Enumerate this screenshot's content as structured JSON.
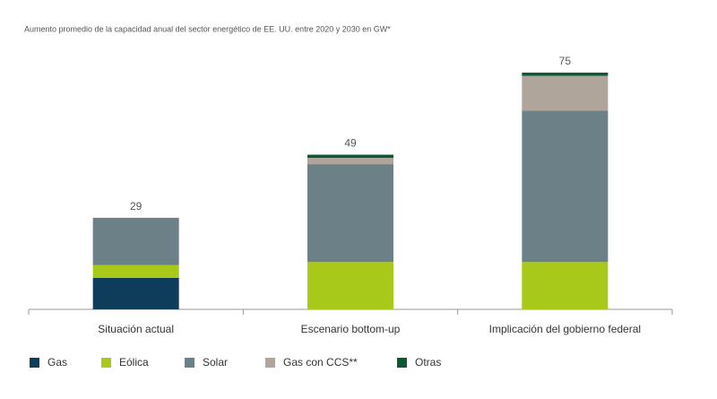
{
  "chart_data": {
    "type": "stacked-bar",
    "title": "Aumento promedio de la capacidad anual del sector energético de EE. UU. entre 2020 y 2030 en GW*",
    "categories": [
      "Situación actual",
      "Escenario bottom-up",
      "Implicación del gobierno federal"
    ],
    "totals": [
      29,
      49,
      75
    ],
    "series": [
      {
        "name": "Gas",
        "color": "#0d3d5a",
        "values": [
          10,
          0,
          0
        ]
      },
      {
        "name": "Eólica",
        "color": "#a8c81a",
        "values": [
          4,
          15,
          15
        ]
      },
      {
        "name": "Solar",
        "color": "#6b8187",
        "values": [
          15,
          31,
          48
        ]
      },
      {
        "name": "Gas con CCS**",
        "color": "#b0a59b",
        "values": [
          0,
          2,
          11
        ]
      },
      {
        "name": "Otras",
        "color": "#0b5a34",
        "values": [
          0,
          1,
          1
        ]
      }
    ]
  }
}
